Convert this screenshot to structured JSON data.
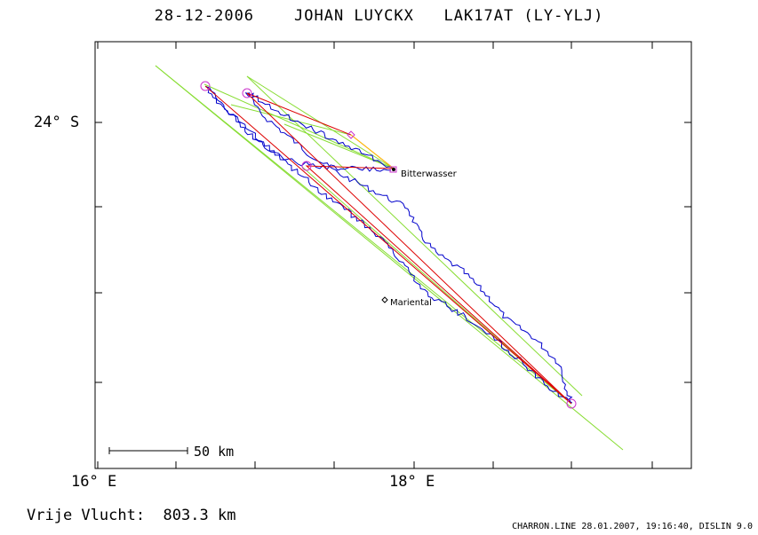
{
  "header": {
    "date": "28-12-2006",
    "pilot": "JOHAN LUYCKX",
    "glider": "LAK17AT (LY-YLJ)"
  },
  "axes": {
    "y_label": "24° S",
    "x_labels": [
      "16° E",
      "18° E"
    ]
  },
  "places": {
    "start": "Bitterwasser",
    "town": "Mariental"
  },
  "scale": {
    "label": "50 km"
  },
  "summary": {
    "label": "Vrije Vlucht:",
    "distance": "803.3 km"
  },
  "footer": {
    "text": "CHARRON.LINE 28.01.2007, 19:16:40, DISLIN 9.0"
  },
  "colors": {
    "track": "#0000cc",
    "task": "#dd0000",
    "sectors": "#88dd33",
    "turnpoint": "#cc33cc",
    "frame": "#000000"
  }
}
